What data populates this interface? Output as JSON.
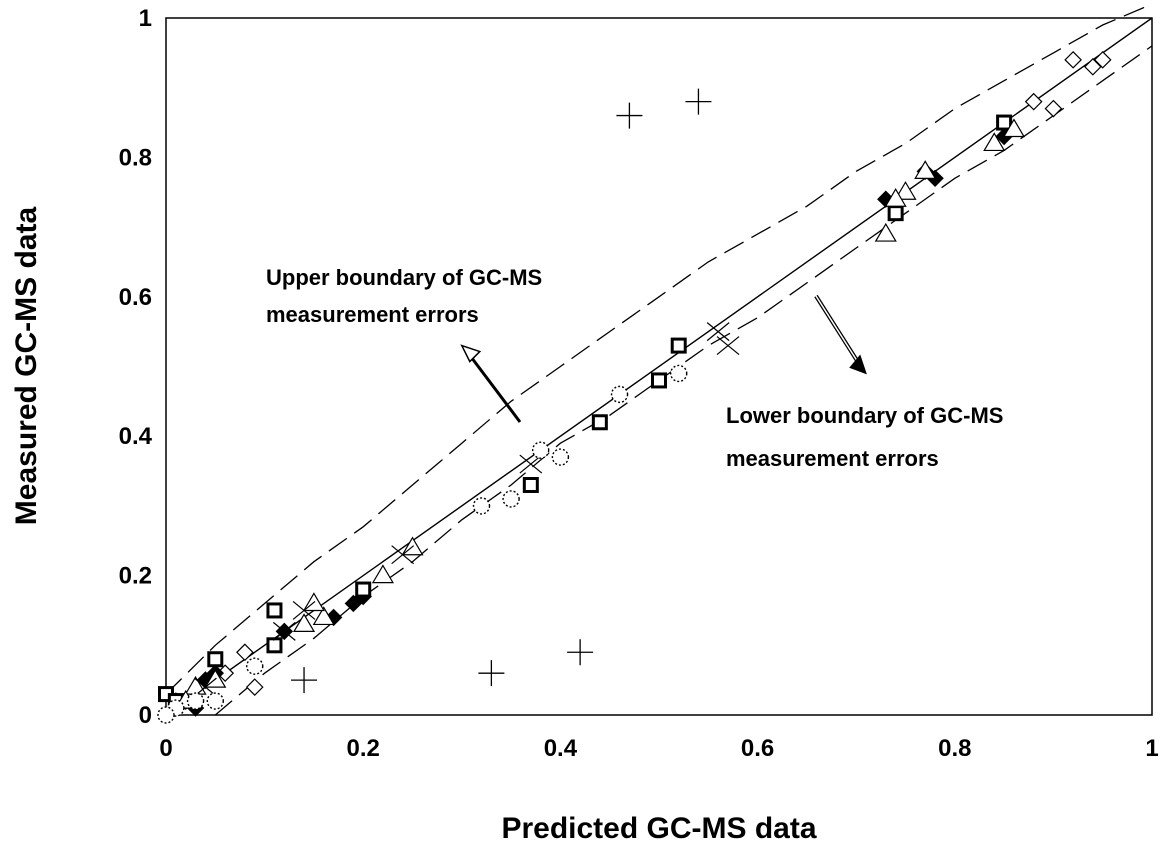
{
  "chart_data": {
    "type": "scatter",
    "title": "",
    "xlabel": "Predicted GC-MS data",
    "ylabel": "Measured GC-MS data",
    "xlim": [
      0,
      1
    ],
    "ylim": [
      0,
      1
    ],
    "xticks": [
      "0",
      "0.2",
      "0.4",
      "0.6",
      "0.8",
      "1"
    ],
    "yticks": [
      "0",
      "0.2",
      "0.4",
      "0.6",
      "0.8",
      "1"
    ],
    "grid": false,
    "legend": "none",
    "annotations": [
      {
        "lines": [
          "Upper boundary of GC-MS",
          "measurement errors"
        ],
        "points_to": [
          0.3,
          0.53
        ]
      },
      {
        "lines": [
          "Lower boundary of GC-MS",
          "measurement errors"
        ],
        "points_to": [
          0.71,
          0.49
        ]
      }
    ],
    "reference_lines": [
      {
        "role": "parity",
        "style": "solid",
        "x": [
          0,
          1
        ],
        "y": [
          0,
          1
        ]
      },
      {
        "role": "upper boundary",
        "style": "dashed",
        "x": [
          0.0,
          0.05,
          0.1,
          0.15,
          0.2,
          0.25,
          0.3,
          0.35,
          0.4,
          0.45,
          0.5,
          0.55,
          0.6,
          0.65,
          0.7,
          0.75,
          0.8,
          0.85,
          0.9,
          0.95,
          1.0
        ],
        "y": [
          0.03,
          0.1,
          0.16,
          0.22,
          0.27,
          0.33,
          0.39,
          0.45,
          0.5,
          0.55,
          0.6,
          0.65,
          0.69,
          0.73,
          0.78,
          0.82,
          0.87,
          0.91,
          0.95,
          0.99,
          1.02
        ]
      },
      {
        "role": "lower boundary",
        "style": "dashed",
        "x": [
          0.05,
          0.1,
          0.15,
          0.2,
          0.25,
          0.3,
          0.35,
          0.4,
          0.45,
          0.5,
          0.55,
          0.6,
          0.65,
          0.7,
          0.75,
          0.8,
          0.85,
          0.9,
          0.95,
          1.0
        ],
        "y": [
          0.0,
          0.06,
          0.11,
          0.17,
          0.22,
          0.28,
          0.33,
          0.39,
          0.43,
          0.48,
          0.53,
          0.57,
          0.62,
          0.67,
          0.72,
          0.77,
          0.81,
          0.86,
          0.91,
          0.96
        ]
      }
    ],
    "series": [
      {
        "marker": "diamond-open",
        "x": [
          0.95,
          0.94,
          0.92,
          0.9,
          0.88,
          0.08,
          0.06,
          0.09,
          0.04,
          0.02,
          0.01
        ],
        "y": [
          0.94,
          0.93,
          0.94,
          0.87,
          0.88,
          0.09,
          0.06,
          0.04,
          0.05,
          0.02,
          0.02
        ]
      },
      {
        "marker": "diamond-filled",
        "x": [
          0.78,
          0.77,
          0.73,
          0.85,
          0.2,
          0.19,
          0.17,
          0.12,
          0.05,
          0.04,
          0.03,
          0.02
        ],
        "y": [
          0.77,
          0.78,
          0.74,
          0.83,
          0.17,
          0.16,
          0.14,
          0.12,
          0.06,
          0.05,
          0.01,
          0.02
        ]
      },
      {
        "marker": "square-open",
        "x": [
          0.85,
          0.74,
          0.52,
          0.5,
          0.44,
          0.37,
          0.2,
          0.11,
          0.11,
          0.05,
          0.0,
          0.01
        ],
        "y": [
          0.85,
          0.72,
          0.53,
          0.48,
          0.42,
          0.33,
          0.18,
          0.15,
          0.1,
          0.08,
          0.03,
          0.02
        ]
      },
      {
        "marker": "triangle-open",
        "x": [
          0.86,
          0.84,
          0.77,
          0.75,
          0.74,
          0.73,
          0.25,
          0.22,
          0.16,
          0.15,
          0.14,
          0.05,
          0.03,
          0.02
        ],
        "y": [
          0.84,
          0.82,
          0.78,
          0.75,
          0.74,
          0.69,
          0.24,
          0.2,
          0.14,
          0.16,
          0.13,
          0.05,
          0.04,
          0.02
        ]
      },
      {
        "marker": "x",
        "x": [
          0.56,
          0.57,
          0.37,
          0.24,
          0.14,
          0.12,
          0.04
        ],
        "y": [
          0.55,
          0.53,
          0.36,
          0.23,
          0.15,
          0.12,
          0.04
        ]
      },
      {
        "marker": "circle-dotted",
        "x": [
          0.52,
          0.46,
          0.4,
          0.38,
          0.35,
          0.32,
          0.09,
          0.05,
          0.03,
          0.01,
          0.0
        ],
        "y": [
          0.49,
          0.46,
          0.37,
          0.38,
          0.31,
          0.3,
          0.07,
          0.02,
          0.02,
          0.01,
          0.0
        ]
      },
      {
        "marker": "plus",
        "x": [
          0.54,
          0.47,
          0.42,
          0.33,
          0.14
        ],
        "y": [
          0.88,
          0.86,
          0.09,
          0.06,
          0.05
        ]
      }
    ]
  }
}
